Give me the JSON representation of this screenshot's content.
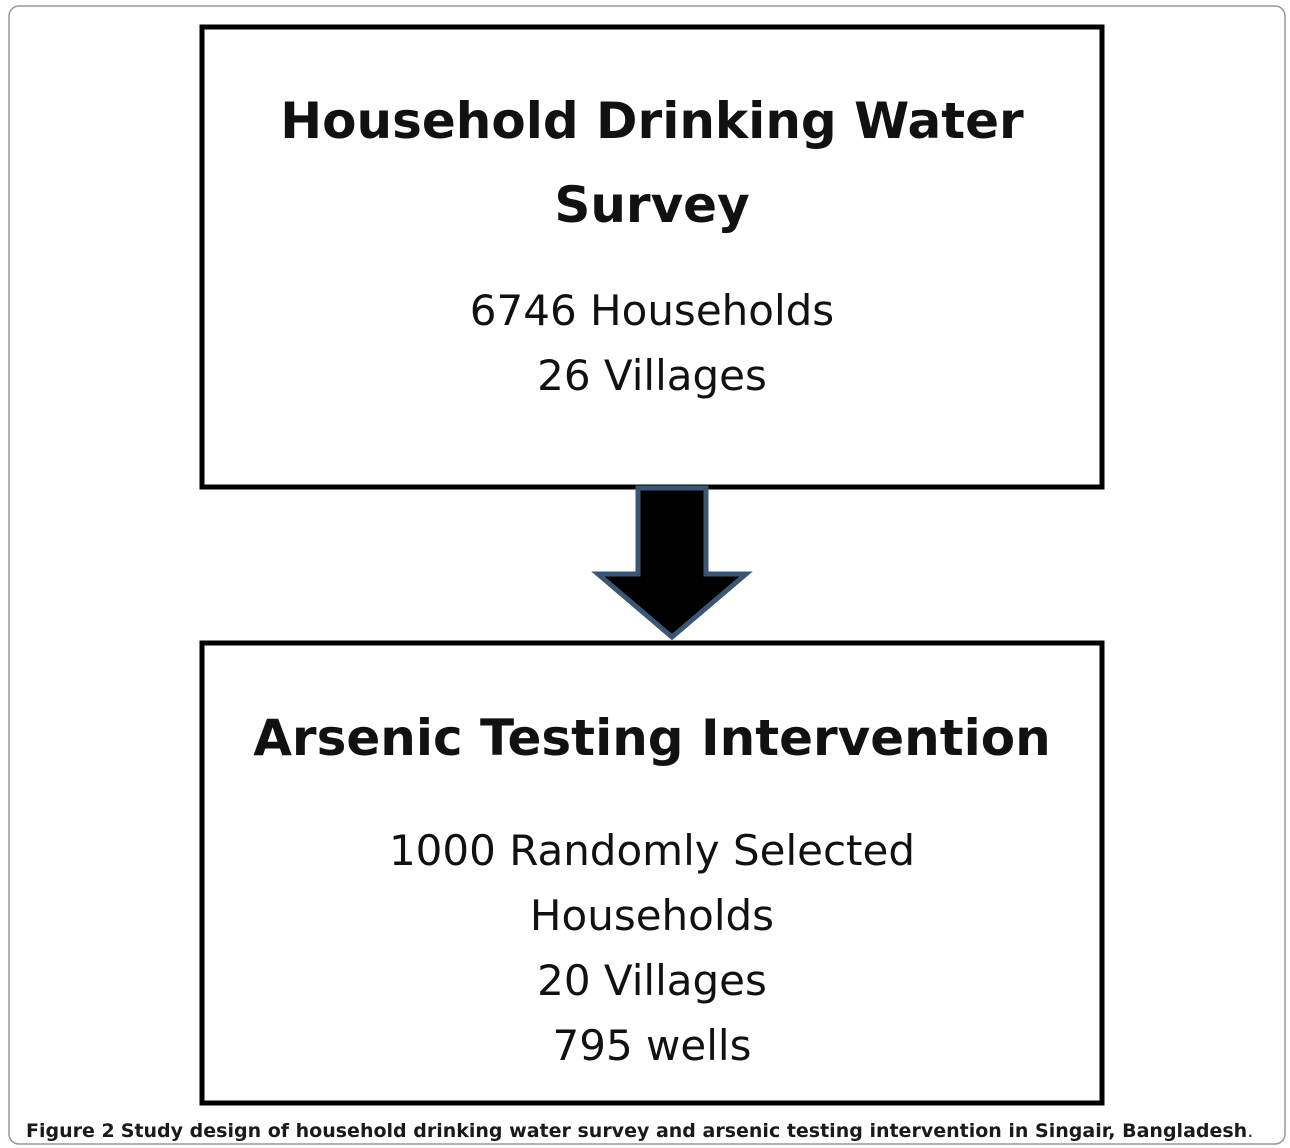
{
  "nodes": [
    {
      "title": [
        "Household Drinking Water",
        "Survey"
      ],
      "lines": [
        "6746 Households",
        "26 Villages"
      ]
    },
    {
      "title": [
        "Arsenic Testing Intervention"
      ],
      "lines": [
        "1000 Randomly  Selected",
        "Households",
        "20 Villages",
        "795 wells"
      ]
    }
  ],
  "caption": {
    "label": "Figure 2",
    "text": "Study design of household drinking water survey and arsenic testing intervention in Singair, Bangladesh",
    "end": "."
  }
}
